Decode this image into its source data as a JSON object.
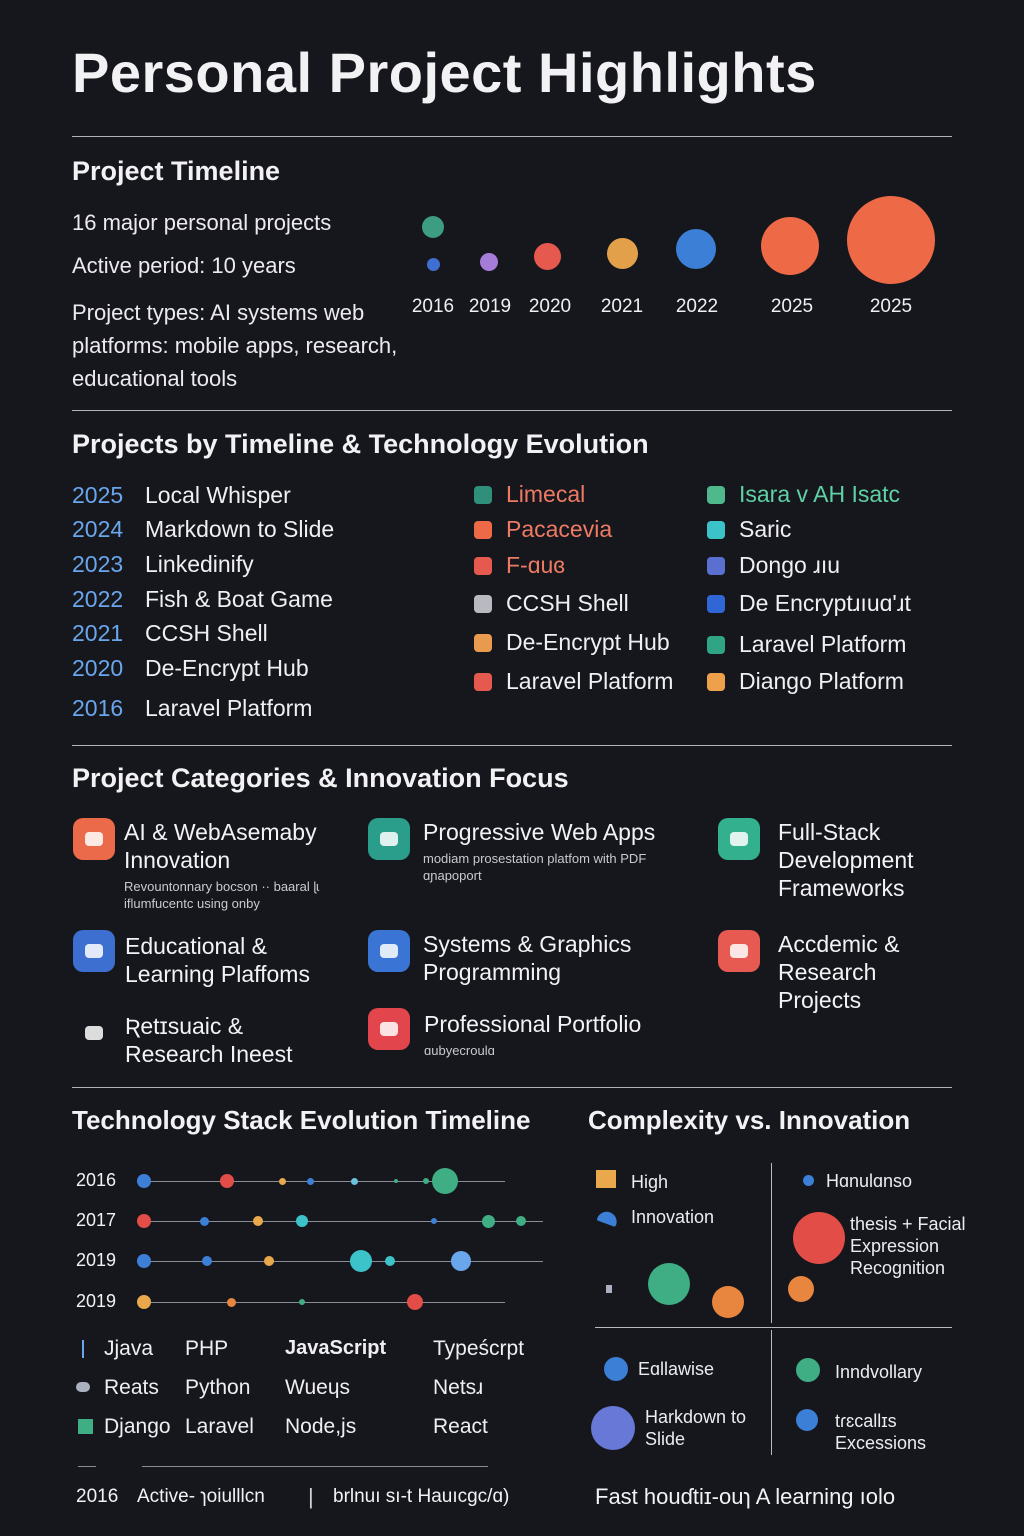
{
  "page": {
    "title": "Personal Project Highlights"
  },
  "timeline": {
    "heading": "Project Timeline",
    "stat1": "16 major personal projects",
    "stat2": "Active period: 10 years",
    "stat3": "Project types: AI systems web platforms: mobile apps, research, educational tools",
    "years": [
      "2016",
      "2019",
      "2020",
      "2021",
      "2022",
      "2025",
      "2025"
    ],
    "colors": [
      "#3d9d82",
      "#3f6fd0",
      "#a67cd9",
      "#e5594e",
      "#e2a04a",
      "#3c7fd6",
      "#ee6a47",
      "#ee6a47"
    ]
  },
  "projects": {
    "heading": "Projects by Timeline & Technology Evolution",
    "list": [
      {
        "year": "2025",
        "name": "Local Whisper"
      },
      {
        "year": "2024",
        "name": "Markdown to Slide"
      },
      {
        "year": "2023",
        "name": "Linkedinify"
      },
      {
        "year": "2022",
        "name": "Fish & Boat Game"
      },
      {
        "year": "2021",
        "name": "CCSH Shell"
      },
      {
        "year": "2020",
        "name": "De-Encrypt Hub"
      },
      {
        "year": "2016",
        "name": "Laravel Platform"
      }
    ],
    "legend_col1": [
      {
        "label": "Limecal",
        "color": "#2f8f7a",
        "text_color": "#ee7a64"
      },
      {
        "label": "Pacacevia",
        "color": "#ee6a47",
        "text_color": "#ee7a64"
      },
      {
        "label": "F-ɑuɞ",
        "color": "#e5594e",
        "text_color": "#ee7a64"
      },
      {
        "label": "CCSH Shell",
        "color": "#b9bac1",
        "text_color": "#f0f0f2"
      },
      {
        "label": "De-Encrypt Hub",
        "color": "#e89a4e",
        "text_color": "#f0f0f2"
      },
      {
        "label": "Laravel Platform",
        "color": "#e5594e",
        "text_color": "#f0f0f2"
      }
    ],
    "legend_col2": [
      {
        "label": "Isara v AH Isatc",
        "color": "#4fb98c",
        "text_color": "#5fd1a4"
      },
      {
        "label": "Saric",
        "color": "#3cc3c9",
        "text_color": "#f0f0f2"
      },
      {
        "label": "Dongo ɹıu",
        "color": "#5a6fd0",
        "text_color": "#f0f0f2"
      },
      {
        "label": "De Encryptɹıuɑ'ɹt",
        "color": "#3066d6",
        "text_color": "#f0f0f2"
      },
      {
        "label": "Laravel Platform",
        "color": "#2fa586",
        "text_color": "#f0f0f2"
      },
      {
        "label": "Diango Platform",
        "color": "#eea14a",
        "text_color": "#f0f0f2"
      }
    ]
  },
  "categories": {
    "heading": "Project Categories & Innovation Focus",
    "items": [
      {
        "title": "AI & WebAsemaby Innovation",
        "sub": "Revountonnary bocson ·· baaral ɭɩ iflumfucentc using onby",
        "color": "#ea6a49"
      },
      {
        "title": "Progressive Web Apps",
        "sub": "modiam prosestation platfom with PDF ɑɲapoport",
        "color": "#2a9e8a"
      },
      {
        "title": "Full-Stack Development Frameworks",
        "sub": "",
        "color": "#33b08d"
      },
      {
        "title": "Educational & Learning Plaffoms",
        "sub": "",
        "color": "#3c6fcf"
      },
      {
        "title": "Systems & Graphics Programming",
        "sub": "",
        "color": "#3a74d4"
      },
      {
        "title": "Accdemic & Research Projects",
        "sub": "",
        "color": "#e65a52"
      },
      {
        "title": "Ʀetɪsuaic & Research Ineest",
        "sub": "",
        "color": "#3a73d6"
      },
      {
        "title": "Professional Portfolio",
        "sub": "ɑubyecroulɑ",
        "color": "#e2464c"
      }
    ]
  },
  "stack": {
    "heading": "Technology Stack Evolution Timeline",
    "rows": [
      "2016",
      "2017",
      "2019",
      "2019"
    ],
    "tech_col1": [
      "Jjava",
      "Reats",
      "Django"
    ],
    "tech_col2": [
      "PHP",
      "Python",
      "Laravel"
    ],
    "tech_col3": [
      "JavaScript",
      "Wueɥs",
      "Node,js"
    ],
    "tech_col4": [
      "Typeścrpt",
      "Netsɹ",
      "React"
    ],
    "footer_year": "2016",
    "footer_text1": "Active- ɿoiulllcn",
    "footer_text2": "brlnuı sı-t Hauıcgc/ɑ)"
  },
  "complexity": {
    "heading": "Complexity vs. Innovation",
    "legend_high": "High",
    "legend_innovation": "Innovation",
    "q1_label": "Hɑnulɑnso",
    "q1_text": "thesis + Facial Expression Recognition",
    "q3_label": "Eɑllawise",
    "q3_text": "Harkdown to Slide",
    "q4_label1": "Inndvollary",
    "q4_label2": "tɾɛcallɪs Excessions",
    "footer": "Fast houɗtiɪ-ouɿ A learning ıolo"
  }
}
